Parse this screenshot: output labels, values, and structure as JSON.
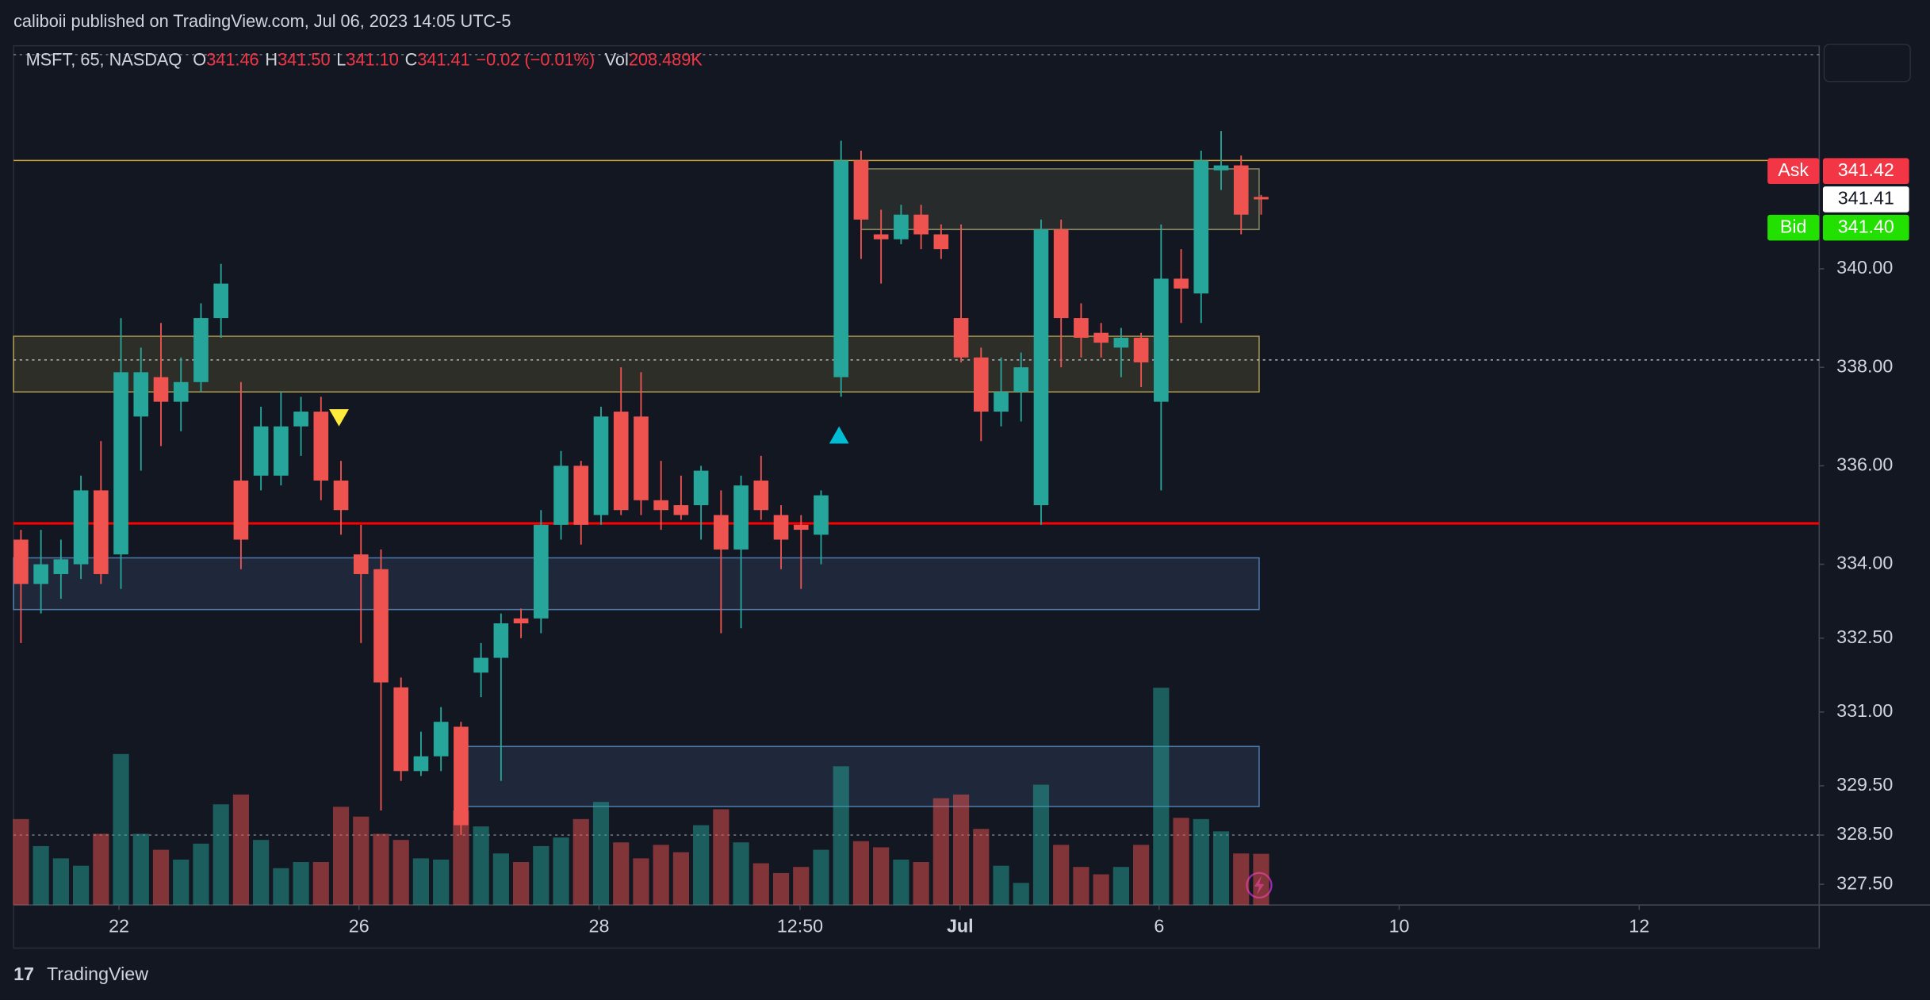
{
  "page": {
    "header": "caliboii published on TradingView.com, Jul 06, 2023 14:05 UTC-5",
    "brand": "TradingView"
  },
  "chart_data": {
    "type": "candlestick",
    "legend": {
      "symbol": "MSFT, 65, NASDAQ",
      "items": [
        {
          "key": "O",
          "value": "341.46"
        },
        {
          "key": "H",
          "value": "341.50"
        },
        {
          "key": "L",
          "value": "341.10"
        },
        {
          "key": "C",
          "value": "341.41"
        }
      ],
      "change": "−0.02 (−0.01%)",
      "vol_key": "Vol",
      "vol_value": "208.489K"
    },
    "categories": [
      null,
      null,
      null,
      null,
      null,
      null,
      null,
      null,
      null,
      null,
      null,
      null,
      null,
      null,
      null,
      null,
      null,
      null,
      null,
      null,
      null,
      null,
      null,
      null,
      null,
      null,
      null,
      null,
      null,
      null,
      null,
      null,
      null,
      null,
      null,
      null,
      null,
      null,
      null,
      null,
      null,
      null,
      null,
      null,
      null,
      null,
      null,
      null,
      null,
      null,
      null,
      null,
      null,
      null,
      null,
      null,
      null,
      null,
      null,
      null,
      null,
      null,
      null
    ],
    "open": [
      334.5,
      333.6,
      333.8,
      334.0,
      335.5,
      334.2,
      337.0,
      337.8,
      337.3,
      337.7,
      339.0,
      335.7,
      335.8,
      335.8,
      336.8,
      337.1,
      335.7,
      334.2,
      333.9,
      331.5,
      329.8,
      330.1,
      330.7,
      331.8,
      332.1,
      332.9,
      332.9,
      334.8,
      336.0,
      335.0,
      337.1,
      337.0,
      335.3,
      335.2,
      335.2,
      335.0,
      334.3,
      335.7,
      335.0,
      334.8,
      334.6,
      337.8,
      342.2,
      340.7,
      340.6,
      341.1,
      340.7,
      339.0,
      338.2,
      337.1,
      337.5,
      335.2,
      340.8,
      339.0,
      338.7,
      338.4,
      338.6,
      337.3,
      339.8,
      339.5,
      342.0,
      342.1,
      341.46
    ],
    "high": [
      334.7,
      334.7,
      334.5,
      335.8,
      336.5,
      339.0,
      338.4,
      338.9,
      338.2,
      339.3,
      340.1,
      337.7,
      337.2,
      337.5,
      337.4,
      337.4,
      336.1,
      334.8,
      334.3,
      331.7,
      330.6,
      331.1,
      330.8,
      332.4,
      333.0,
      333.1,
      335.1,
      336.3,
      336.1,
      337.2,
      338.0,
      337.9,
      336.1,
      335.8,
      336.0,
      335.5,
      335.8,
      336.2,
      335.2,
      335.0,
      335.5,
      342.6,
      342.4,
      341.2,
      341.3,
      341.3,
      340.9,
      340.9,
      338.4,
      338.2,
      338.3,
      341.0,
      341.0,
      339.3,
      338.9,
      338.8,
      338.7,
      340.9,
      340.4,
      342.4,
      342.8,
      342.3,
      341.5
    ],
    "low": [
      332.4,
      333.0,
      333.3,
      333.7,
      333.6,
      333.5,
      335.9,
      336.4,
      336.7,
      337.5,
      338.6,
      333.9,
      335.5,
      335.6,
      336.2,
      335.3,
      334.6,
      332.4,
      329.0,
      329.6,
      329.7,
      329.8,
      328.5,
      331.3,
      329.6,
      332.5,
      332.6,
      334.5,
      334.4,
      334.8,
      335.0,
      335.0,
      334.7,
      334.9,
      334.5,
      332.6,
      332.7,
      334.9,
      333.9,
      333.5,
      334.0,
      337.4,
      340.2,
      339.7,
      340.5,
      340.4,
      340.2,
      338.1,
      336.5,
      336.8,
      336.9,
      334.8,
      338.0,
      338.2,
      338.2,
      337.8,
      337.6,
      335.5,
      338.9,
      338.9,
      341.6,
      340.7,
      341.1
    ],
    "close": [
      333.6,
      334.0,
      334.1,
      335.5,
      333.8,
      337.9,
      337.9,
      337.3,
      337.7,
      339.0,
      339.7,
      334.5,
      336.8,
      336.8,
      337.1,
      335.7,
      335.1,
      333.8,
      331.6,
      329.8,
      330.1,
      330.8,
      328.7,
      332.1,
      332.8,
      332.8,
      334.8,
      336.0,
      334.8,
      337.0,
      335.1,
      335.3,
      335.1,
      335.0,
      335.9,
      334.3,
      335.6,
      335.1,
      334.5,
      334.7,
      335.4,
      342.2,
      341.0,
      340.6,
      341.1,
      340.7,
      340.4,
      338.2,
      337.1,
      337.5,
      338.0,
      340.8,
      339.0,
      338.6,
      338.5,
      338.6,
      338.1,
      339.8,
      339.6,
      342.2,
      342.1,
      341.1,
      341.41
    ],
    "volume": [
      350000,
      240000,
      190000,
      160000,
      290000,
      615000,
      290000,
      225000,
      185000,
      250000,
      410000,
      450000,
      265000,
      150000,
      175000,
      175000,
      400000,
      360000,
      290000,
      265000,
      190000,
      185000,
      385000,
      320000,
      210000,
      175000,
      240000,
      275000,
      350000,
      420000,
      255000,
      190000,
      245000,
      215000,
      325000,
      390000,
      255000,
      170000,
      130000,
      155000,
      225000,
      565000,
      260000,
      235000,
      185000,
      175000,
      435000,
      450000,
      310000,
      160000,
      90000,
      490000,
      245000,
      155000,
      125000,
      155000,
      245000,
      885000,
      355000,
      350000,
      300000,
      210000,
      208489
    ],
    "up_color": "#26a69a",
    "down_color": "#ef5350",
    "xlim": [
      -0.37,
      89.9
    ],
    "xticks": [
      {
        "value": 4.9,
        "label": "22"
      },
      {
        "value": 16.9,
        "label": "26"
      },
      {
        "value": 28.9,
        "label": "28"
      },
      {
        "value": 38.95,
        "label": "12:50"
      },
      {
        "value": 46.95,
        "label": "Jul"
      },
      {
        "value": 56.9,
        "label": "6"
      },
      {
        "value": 68.9,
        "label": "10"
      },
      {
        "value": 80.9,
        "label": "12"
      }
    ],
    "ylim": [
      327.08,
      344.53
    ],
    "yticks": [
      {
        "value": 340,
        "label": "340.00"
      },
      {
        "value": 338,
        "label": "338.00"
      },
      {
        "value": 336,
        "label": "336.00"
      },
      {
        "value": 334,
        "label": "334.00"
      },
      {
        "value": 332.5,
        "label": "332.50"
      },
      {
        "value": 331,
        "label": "331.00"
      },
      {
        "value": 329.5,
        "label": "329.50"
      },
      {
        "value": 328.5,
        "label": "328.50"
      },
      {
        "value": 327.5,
        "label": "327.50"
      }
    ],
    "volume_ylim": [
      0,
      3500000
    ],
    "levels": [
      {
        "value": 344.35,
        "color": "#787b86",
        "style": "dotted"
      },
      {
        "value": 342.2,
        "color": "#d4a53a",
        "style": "solid"
      },
      {
        "value": 338.15,
        "color": "#b2b5be",
        "style": "dotted"
      },
      {
        "value": 334.83,
        "color": "#ff0000",
        "style": "solid"
      },
      {
        "value": 328.5,
        "color": "#787b86",
        "style": "dotted"
      }
    ],
    "zones": [
      {
        "x": [
          42,
          61.9
        ],
        "y": [
          340.8,
          342.03
        ],
        "color": "#9e9e6a"
      },
      {
        "x": [
          -0.37,
          61.9
        ],
        "y": [
          337.5,
          338.63
        ],
        "color": "#c9b458"
      },
      {
        "x": [
          -0.37,
          61.9
        ],
        "y": [
          333.08,
          334.13
        ],
        "color": "#5b8fc7"
      },
      {
        "x": [
          22.3,
          61.9
        ],
        "y": [
          329.08,
          330.3
        ],
        "color": "#5b8fc7"
      }
    ],
    "markers": [
      {
        "x": 15.9,
        "y": 336.95,
        "dir": "down",
        "color": "#ffeb3b"
      },
      {
        "x": 40.9,
        "y": 336.65,
        "dir": "up",
        "color": "#00bcd4"
      }
    ],
    "price_labels": [
      {
        "name": "Ask",
        "value": 341.42,
        "label": "341.42",
        "color": "#f23645"
      },
      {
        "value": 341.41,
        "label": "341.41",
        "color": "#ffffff"
      },
      {
        "name": "Bid",
        "value": 341.4,
        "label": "341.40",
        "color": "#22e000"
      }
    ]
  }
}
